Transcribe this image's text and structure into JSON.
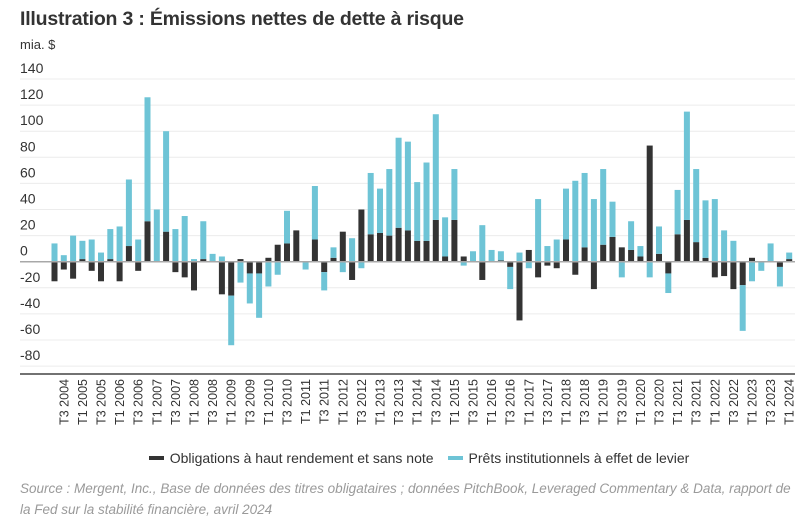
{
  "title": "Illustration 3 : Émissions nettes de dette à risque",
  "unit": "mia. $",
  "legend": [
    {
      "label": "Obligations à haut rendement et sans note",
      "color": "#333333"
    },
    {
      "label": "Prêts institutionnels à effet de levier",
      "color": "#6ec4d6"
    }
  ],
  "source": "Source : Mergent, Inc., Base de données des titres obligataires ; données PitchBook, Leveraged Commentary & Data, rapport de la Fed sur la stabilité financière, avril 2024",
  "chart_data": {
    "type": "bar",
    "stacked": true,
    "title": "Illustration 3 : Émissions nettes de dette à risque",
    "ylabel": "mia. $",
    "ylim": [
      -80,
      140
    ],
    "y_ticks": [
      "140",
      "120",
      "100",
      "80",
      "60",
      "40",
      "20",
      "0",
      "-20",
      "-40",
      "-60",
      "-80"
    ],
    "y_tick_values": [
      140,
      120,
      100,
      80,
      60,
      40,
      20,
      0,
      -20,
      -40,
      -60,
      -80
    ],
    "grid": true,
    "legend_position": "bottom",
    "x_tick_labels": [
      "T3 2004",
      "T1 2005",
      "T3 2005",
      "T1 2006",
      "T3 2006",
      "T1 2007",
      "T3 2007",
      "T1 2008",
      "T3 2008",
      "T1 2009",
      "T3 2009",
      "T1 2010",
      "T3 2010",
      "T1 2011",
      "T3 2011",
      "T1 2012",
      "T3 2012",
      "T1 2013",
      "T3 2013",
      "T1 2014",
      "T3 2014",
      "T1 2015",
      "T3 2015",
      "T1 2016",
      "T3 2016",
      "T1 2017",
      "T3 2017",
      "T1 2018",
      "T3 2018",
      "T1 2019",
      "T3 2019",
      "T1 2020",
      "T3 2020",
      "T1 2021",
      "T3 2021",
      "T1 2022",
      "T3 2022",
      "T1 2023",
      "T3 2023",
      "T1 2024"
    ],
    "series": [
      {
        "name": "Obligations à haut rendement et sans note",
        "color": "#333333",
        "values": [
          -15,
          -6,
          -13,
          2,
          -7,
          -15,
          2,
          -15,
          12,
          -7,
          31,
          0,
          23,
          -8,
          -12,
          -22,
          2,
          0,
          -25,
          -26,
          2,
          -9,
          -9,
          3,
          13,
          14,
          24,
          0,
          17,
          -8,
          3,
          23,
          -14,
          40,
          21,
          22,
          20,
          26,
          24,
          16,
          16,
          32,
          4,
          32,
          4,
          0,
          -14,
          0,
          1,
          -4,
          -45,
          9,
          -12,
          -3,
          -5,
          17,
          -10,
          11,
          -21,
          13,
          19,
          11,
          9,
          4,
          89,
          6,
          -9,
          21,
          32,
          15,
          3,
          -12,
          -11,
          -21,
          -18,
          3,
          0,
          0,
          -4,
          2
        ]
      },
      {
        "name": "Prêts institutionnels à effet de levier",
        "color": "#6ec4d6",
        "values": [
          14,
          5,
          20,
          14,
          17,
          7,
          23,
          27,
          51,
          17,
          95,
          40,
          77,
          25,
          35,
          2,
          29,
          6,
          4,
          -38,
          -16,
          -23,
          -34,
          -19,
          -10,
          25,
          0,
          -6,
          41,
          -14,
          8,
          -8,
          18,
          -5,
          47,
          34,
          51,
          69,
          68,
          45,
          60,
          81,
          30,
          39,
          -3,
          8,
          28,
          9,
          7,
          -17,
          7,
          -5,
          48,
          12,
          17,
          39,
          62,
          57,
          48,
          58,
          27,
          -12,
          22,
          8,
          -12,
          21,
          -15,
          34,
          83,
          56,
          44,
          48,
          24,
          16,
          -35,
          -15,
          -7,
          14,
          -15,
          5
        ]
      }
    ]
  }
}
